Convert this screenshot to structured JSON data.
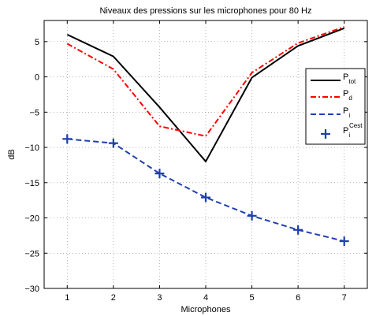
{
  "chart_data": {
    "type": "line",
    "title": "Niveaux des pressions sur les microphones pour 80 Hz",
    "xlabel": "Microphones",
    "ylabel": "dB",
    "xlim": [
      0.5,
      7.5
    ],
    "ylim": [
      -30,
      8
    ],
    "xticks": [
      1,
      2,
      3,
      4,
      5,
      6,
      7
    ],
    "yticks": [
      5,
      0,
      -5,
      -10,
      -15,
      -20,
      -25,
      -30
    ],
    "grid": true,
    "legend_position": "right",
    "x": [
      1,
      2,
      3,
      4,
      5,
      6,
      7
    ],
    "series": [
      {
        "key": "tot",
        "legend_main": "P",
        "legend_sub": "tot",
        "legend_sup": "",
        "color": "#000000",
        "style": "solid",
        "values": [
          6.0,
          2.9,
          -4.3,
          -12.0,
          -0.1,
          4.4,
          6.9
        ]
      },
      {
        "key": "d",
        "legend_main": "P",
        "legend_sub": "d",
        "legend_sup": "",
        "color": "#ff0000",
        "style": "dashdot",
        "values": [
          4.7,
          1.1,
          -7.0,
          -8.4,
          0.6,
          4.8,
          7.1
        ]
      },
      {
        "key": "i",
        "legend_main": "P",
        "legend_sub": "i",
        "legend_sup": "",
        "color": "#1f3fae",
        "style": "dashed",
        "values": [
          -8.8,
          -9.4,
          -13.7,
          -17.1,
          -19.7,
          -21.7,
          -23.3
        ]
      },
      {
        "key": "cest",
        "legend_main": "P",
        "legend_sub": "i",
        "legend_sup": "Cest",
        "color": "#1f3fae",
        "style": "markers-plus",
        "values": [
          -8.8,
          -9.4,
          -13.7,
          -17.1,
          -19.7,
          -21.7,
          -23.3
        ]
      }
    ]
  }
}
